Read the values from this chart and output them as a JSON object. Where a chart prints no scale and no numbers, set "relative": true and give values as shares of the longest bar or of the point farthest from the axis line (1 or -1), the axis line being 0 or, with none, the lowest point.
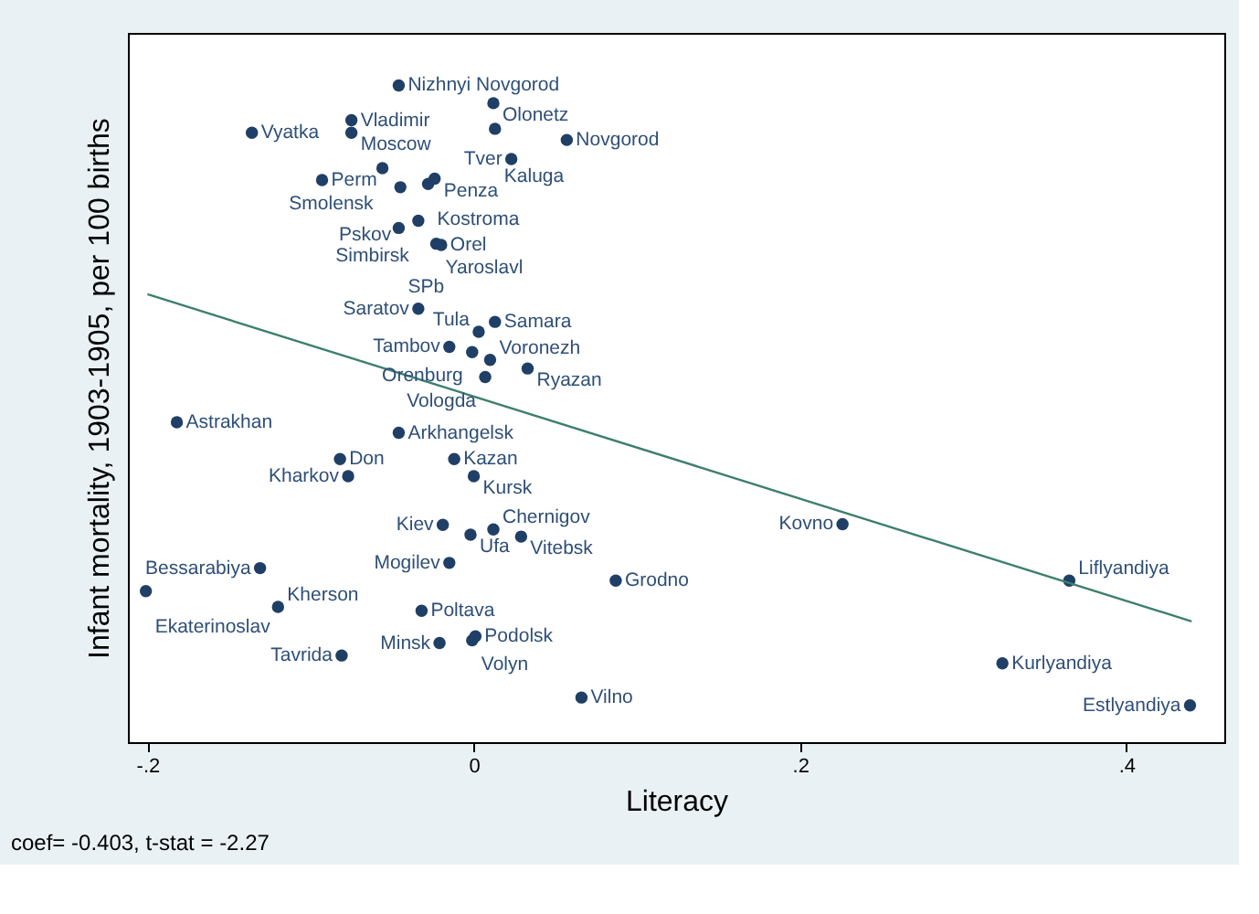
{
  "chart_data": {
    "type": "scatter",
    "relative": true,
    "xlabel": "Literacy",
    "ylabel": "Infant mortality, 1903-1905, per 100 births",
    "xlim": [
      -0.212,
      0.46
    ],
    "xticks": [
      {
        "value": -0.2,
        "label": "-.2"
      },
      {
        "value": 0,
        "label": "0"
      },
      {
        "value": 0.2,
        "label": ".2"
      },
      {
        "value": 0.4,
        "label": ".4"
      }
    ],
    "series": [
      {
        "type": "scatter",
        "color": "#1f3f66",
        "marker": "circle",
        "x": [
          -0.046,
          0.012,
          -0.075,
          -0.136,
          -0.075,
          0.013,
          0.057,
          0.023,
          -0.056,
          -0.093,
          -0.045,
          -0.024,
          -0.028,
          -0.034,
          -0.046,
          -0.023,
          -0.02,
          -0.034,
          0.013,
          0.003,
          -0.015,
          -0.001,
          0.01,
          0.033,
          0.007,
          -0.046,
          -0.082,
          -0.012,
          -0.077,
          0.0,
          -0.182,
          0.226,
          -0.019,
          0.012,
          -0.002,
          0.029,
          -0.015,
          0.087,
          -0.131,
          -0.201,
          -0.12,
          -0.032,
          -0.021,
          -0.001,
          0.001,
          -0.081,
          0.066,
          0.365,
          0.324,
          0.439
        ],
        "values": [
          1.0,
          0.973,
          0.947,
          0.928,
          0.928,
          0.934,
          0.917,
          0.888,
          0.874,
          0.856,
          0.845,
          0.858,
          0.85,
          0.794,
          0.783,
          0.759,
          0.757,
          0.66,
          0.64,
          0.625,
          0.602,
          0.594,
          0.582,
          0.569,
          0.556,
          0.471,
          0.431,
          0.431,
          0.405,
          0.405,
          0.487,
          0.332,
          0.331,
          0.324,
          0.316,
          0.313,
          0.273,
          0.246,
          0.265,
          0.23,
          0.206,
          0.2,
          0.151,
          0.155,
          0.161,
          0.132,
          0.068,
          0.246,
          0.12,
          0.056
        ]
      },
      {
        "type": "line",
        "color": "#3d7f6e",
        "line_style": "solid",
        "x": [
          -0.2,
          0.44
        ],
        "values": [
          0.682,
          0.184
        ]
      }
    ],
    "annotations": [
      {
        "text": "Nizhnyi Novgorod",
        "x": -0.046,
        "y": 1.0
      },
      {
        "text": "Olonetz",
        "x": 0.012,
        "y": 0.973
      },
      {
        "text": "Vladimir",
        "x": -0.075,
        "y": 0.947
      },
      {
        "text": "Vyatka",
        "x": -0.136,
        "y": 0.928
      },
      {
        "text": "Moscow",
        "x": -0.075,
        "y": 0.928
      },
      {
        "text": "Kaluga",
        "x": 0.013,
        "y": 0.934
      },
      {
        "text": "Novgorod",
        "x": 0.057,
        "y": 0.917
      },
      {
        "text": "Tver",
        "x": 0.023,
        "y": 0.888
      },
      {
        "text": "Smolensk",
        "x": -0.056,
        "y": 0.874
      },
      {
        "text": "Perm",
        "x": -0.093,
        "y": 0.856
      },
      {
        "text": "Pskov",
        "x": -0.045,
        "y": 0.845
      },
      {
        "text": "Penza",
        "x": -0.024,
        "y": 0.858
      },
      {
        "text": "Kostroma",
        "x": -0.028,
        "y": 0.85
      },
      {
        "text": "Simbirsk",
        "x": -0.034,
        "y": 0.794
      },
      {
        "text": "SPb",
        "x": -0.046,
        "y": 0.783
      },
      {
        "text": "Yaroslavl",
        "x": -0.023,
        "y": 0.759
      },
      {
        "text": "Orel",
        "x": -0.02,
        "y": 0.757
      },
      {
        "text": "Saratov",
        "x": -0.034,
        "y": 0.66
      },
      {
        "text": "Samara",
        "x": 0.013,
        "y": 0.64
      },
      {
        "text": "Tula",
        "x": 0.003,
        "y": 0.625
      },
      {
        "text": "Tambov",
        "x": -0.015,
        "y": 0.602
      },
      {
        "text": "Orenburg",
        "x": -0.001,
        "y": 0.594
      },
      {
        "text": "Voronezh",
        "x": 0.01,
        "y": 0.582
      },
      {
        "text": "Ryazan",
        "x": 0.033,
        "y": 0.569
      },
      {
        "text": "Vologda",
        "x": 0.007,
        "y": 0.556
      },
      {
        "text": "Arkhangelsk",
        "x": -0.046,
        "y": 0.471
      },
      {
        "text": "Don",
        "x": -0.082,
        "y": 0.431
      },
      {
        "text": "Kazan",
        "x": -0.012,
        "y": 0.431
      },
      {
        "text": "Kharkov",
        "x": -0.077,
        "y": 0.405
      },
      {
        "text": "Kursk",
        "x": 0.0,
        "y": 0.405
      },
      {
        "text": "Astrakhan",
        "x": -0.182,
        "y": 0.487
      },
      {
        "text": "Kovno",
        "x": 0.226,
        "y": 0.332
      },
      {
        "text": "Kiev",
        "x": -0.019,
        "y": 0.331
      },
      {
        "text": "Chernigov",
        "x": 0.012,
        "y": 0.324
      },
      {
        "text": "Ufa",
        "x": -0.002,
        "y": 0.316
      },
      {
        "text": "Vitebsk",
        "x": 0.029,
        "y": 0.313
      },
      {
        "text": "Mogilev",
        "x": -0.015,
        "y": 0.273
      },
      {
        "text": "Grodno",
        "x": 0.087,
        "y": 0.246
      },
      {
        "text": "Bessarabiya",
        "x": -0.131,
        "y": 0.265
      },
      {
        "text": "Ekaterinoslav",
        "x": -0.201,
        "y": 0.23
      },
      {
        "text": "Kherson",
        "x": -0.12,
        "y": 0.206
      },
      {
        "text": "Poltava",
        "x": -0.032,
        "y": 0.2
      },
      {
        "text": "Minsk",
        "x": -0.021,
        "y": 0.151
      },
      {
        "text": "Volyn",
        "x": -0.001,
        "y": 0.155
      },
      {
        "text": "Podolsk",
        "x": 0.001,
        "y": 0.161
      },
      {
        "text": "Tavrida",
        "x": -0.081,
        "y": 0.132
      },
      {
        "text": "Vilno",
        "x": 0.066,
        "y": 0.068
      },
      {
        "text": "Liflyandiya",
        "x": 0.365,
        "y": 0.246
      },
      {
        "text": "Kurlyandiya",
        "x": 0.324,
        "y": 0.12
      },
      {
        "text": "Estlyandiya",
        "x": 0.439,
        "y": 0.056
      },
      "coef= -0.403, t-stat = -2.27"
    ]
  }
}
